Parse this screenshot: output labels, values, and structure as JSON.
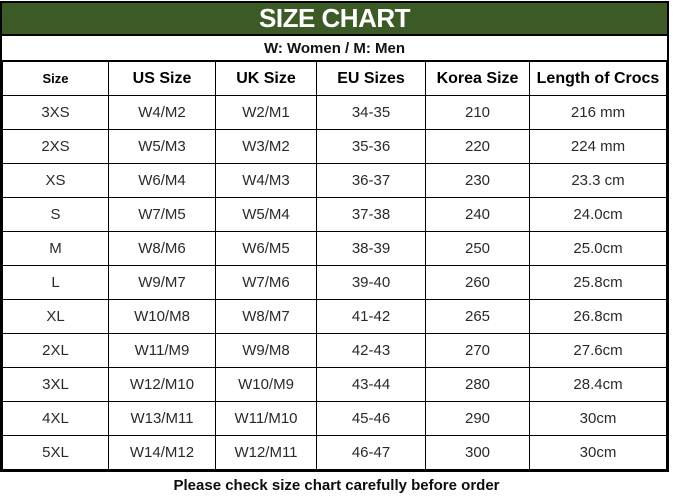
{
  "header": {
    "title": "SIZE CHART",
    "subtitle": "W: Women / M: Men"
  },
  "table": {
    "columns": [
      "Size",
      "US Size",
      "UK Size",
      "EU Sizes",
      "Korea Size",
      "Length of Crocs"
    ],
    "rows": [
      [
        "3XS",
        "W4/M2",
        "W2/M1",
        "34-35",
        "210",
        "216 mm"
      ],
      [
        "2XS",
        "W5/M3",
        "W3/M2",
        "35-36",
        "220",
        "224 mm"
      ],
      [
        "XS",
        "W6/M4",
        "W4/M3",
        "36-37",
        "230",
        "23.3 cm"
      ],
      [
        "S",
        "W7/M5",
        "W5/M4",
        "37-38",
        "240",
        "24.0cm"
      ],
      [
        "M",
        "W8/M6",
        "W6/M5",
        "38-39",
        "250",
        "25.0cm"
      ],
      [
        "L",
        "W9/M7",
        "W7/M6",
        "39-40",
        "260",
        "25.8cm"
      ],
      [
        "XL",
        "W10/M8",
        "W8/M7",
        "41-42",
        "265",
        "26.8cm"
      ],
      [
        "2XL",
        "W11/M9",
        "W9/M8",
        "42-43",
        "270",
        "27.6cm"
      ],
      [
        "3XL",
        "W12/M10",
        "W10/M9",
        "43-44",
        "280",
        "28.4cm"
      ],
      [
        "4XL",
        "W13/M11",
        "W11/M10",
        "45-46",
        "290",
        "30cm"
      ],
      [
        "5XL",
        "W14/M12",
        "W12/M11",
        "46-47",
        "300",
        "30cm"
      ]
    ]
  },
  "footer": {
    "note": "Please check size chart carefully before order"
  },
  "colors": {
    "header_green": "#3c5a26",
    "border": "#000000",
    "title_text": "#ffffff",
    "cell_text": "#2a2a2a"
  }
}
